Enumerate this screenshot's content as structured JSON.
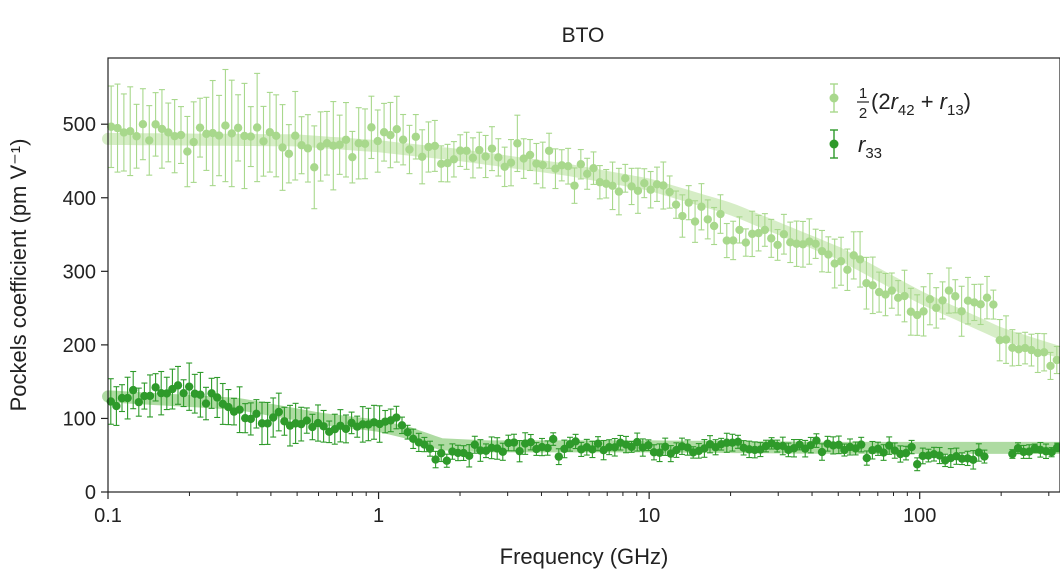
{
  "chart_data": {
    "type": "scatter",
    "title": "BTO",
    "xlabel": "Frequency (GHz)",
    "ylabel": "Pockels coefficient (pm V⁻¹)",
    "x_scale": "log",
    "xlim": [
      0.1,
      330
    ],
    "ylim": [
      0,
      590
    ],
    "x_ticks": [
      {
        "value": 0.1,
        "label": "0.1"
      },
      {
        "value": 1,
        "label": "1"
      },
      {
        "value": 10,
        "label": "10"
      },
      {
        "value": 100,
        "label": "100"
      }
    ],
    "y_ticks": [
      {
        "value": 0,
        "label": "0"
      },
      {
        "value": 100,
        "label": "100"
      },
      {
        "value": 200,
        "label": "200"
      },
      {
        "value": 300,
        "label": "300"
      },
      {
        "value": 400,
        "label": "400"
      },
      {
        "value": 500,
        "label": "500"
      }
    ],
    "grid": false,
    "legend_position": "top-right",
    "series": [
      {
        "key": "r42",
        "name": "½(2r42 + r13)",
        "legend_parts": {
          "frac_num": "1",
          "frac_den": "2",
          "open": "(2",
          "r": "r",
          "sub1": "42",
          "plus": " + ",
          "r2": "r",
          "sub2": "13",
          "close": ")"
        },
        "color": "#a8d88c",
        "band_color": "#c4e6ae",
        "trend": [
          [
            0.1,
            480
          ],
          [
            0.5,
            478
          ],
          [
            1,
            470
          ],
          [
            2,
            458
          ],
          [
            5,
            438
          ],
          [
            10,
            418
          ],
          [
            20,
            385
          ],
          [
            50,
            325
          ],
          [
            100,
            265
          ],
          [
            200,
            215
          ],
          [
            330,
            190
          ]
        ],
        "anchors": [
          [
            0.1,
            485,
            50
          ],
          [
            0.13,
            490,
            50
          ],
          [
            0.2,
            480,
            55
          ],
          [
            0.3,
            490,
            60
          ],
          [
            0.5,
            470,
            50
          ],
          [
            0.8,
            470,
            45
          ],
          [
            1,
            485,
            45
          ],
          [
            1.3,
            470,
            30
          ],
          [
            2,
            455,
            28
          ],
          [
            3,
            450,
            30
          ],
          [
            5,
            445,
            28
          ],
          [
            8,
            420,
            25
          ],
          [
            12,
            400,
            25
          ],
          [
            20,
            355,
            25
          ],
          [
            30,
            345,
            25
          ],
          [
            45,
            330,
            25
          ],
          [
            60,
            300,
            30
          ],
          [
            75,
            255,
            30
          ],
          [
            100,
            250,
            30
          ],
          [
            150,
            260,
            30
          ],
          [
            250,
            195,
            25
          ],
          [
            330,
            180,
            25
          ]
        ],
        "x_range": [
          0.1,
          330
        ],
        "count": 150,
        "noise": 18,
        "gap": null
      },
      {
        "key": "r33",
        "name": "r33",
        "legend_parts": {
          "r": "r",
          "sub": "33"
        },
        "color": "#2e9a2a",
        "band_color": "#8ccc7a",
        "trend": [
          [
            0.1,
            130
          ],
          [
            0.3,
            120
          ],
          [
            0.6,
            100
          ],
          [
            1,
            90
          ],
          [
            1.3,
            80
          ],
          [
            1.7,
            65
          ],
          [
            2.5,
            62
          ],
          [
            10,
            62
          ],
          [
            50,
            60
          ],
          [
            330,
            60
          ]
        ],
        "anchors": [
          [
            0.1,
            120,
            25
          ],
          [
            0.15,
            140,
            25
          ],
          [
            0.2,
            140,
            25
          ],
          [
            0.3,
            110,
            25
          ],
          [
            0.45,
            95,
            22
          ],
          [
            0.7,
            85,
            20
          ],
          [
            1,
            95,
            20
          ],
          [
            1.2,
            95,
            15
          ],
          [
            1.35,
            70,
            12
          ],
          [
            1.6,
            50,
            12
          ],
          [
            2,
            52,
            12
          ],
          [
            3,
            62,
            12
          ],
          [
            10,
            62,
            10
          ],
          [
            30,
            62,
            10
          ],
          [
            60,
            58,
            10
          ],
          [
            100,
            50,
            10
          ],
          [
            130,
            48,
            10
          ],
          [
            170,
            50,
            10
          ],
          [
            220,
            58,
            8
          ],
          [
            330,
            60,
            8
          ]
        ],
        "x_range": [
          0.1,
          330
        ],
        "count": 170,
        "noise": 8,
        "gap": [
          175,
          215
        ]
      }
    ]
  }
}
